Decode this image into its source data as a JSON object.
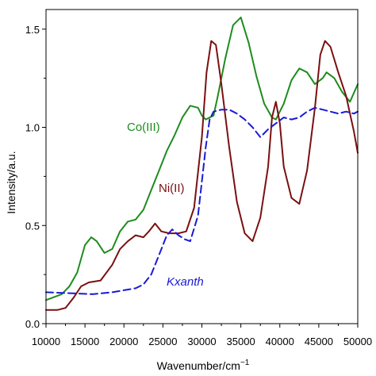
{
  "chart_data": {
    "type": "line",
    "xlabel": "Wavenumber/cm",
    "xlabel_sup": "−1",
    "ylabel": "Intensity/a.u.",
    "xlim": [
      10000,
      50000
    ],
    "ylim": [
      0,
      1.6
    ],
    "x_ticks": [
      10000,
      15000,
      20000,
      25000,
      30000,
      35000,
      40000,
      45000,
      50000
    ],
    "y_ticks": [
      0.0,
      0.5,
      1.0,
      1.5
    ],
    "x_tick_labels": [
      "10000",
      "15000",
      "20000",
      "25000",
      "30000",
      "35000",
      "40000",
      "45000",
      "50000"
    ],
    "y_tick_labels": [
      "0.0",
      "0.5",
      "1.0",
      "1.5"
    ],
    "grid": false,
    "series": [
      {
        "name": "Co(III)",
        "color": "#1e8c1e",
        "style": "solid",
        "label_italic": false,
        "x": [
          10000,
          12000,
          13000,
          14000,
          15000,
          15800,
          16500,
          17500,
          18500,
          19500,
          20500,
          21500,
          22500,
          23500,
          24500,
          25500,
          26500,
          27500,
          28500,
          29500,
          30000,
          30500,
          31000,
          31500,
          32000,
          33000,
          34000,
          35000,
          36000,
          37000,
          38000,
          39000,
          39500,
          40500,
          41500,
          42500,
          43500,
          44500,
          45500,
          46000,
          47000,
          48000,
          49000,
          50000
        ],
        "y": [
          0.12,
          0.15,
          0.19,
          0.26,
          0.4,
          0.44,
          0.42,
          0.36,
          0.38,
          0.47,
          0.52,
          0.53,
          0.58,
          0.68,
          0.78,
          0.88,
          0.96,
          1.05,
          1.11,
          1.1,
          1.06,
          1.04,
          1.05,
          1.06,
          1.15,
          1.35,
          1.52,
          1.56,
          1.43,
          1.26,
          1.12,
          1.05,
          1.04,
          1.12,
          1.24,
          1.3,
          1.28,
          1.22,
          1.25,
          1.28,
          1.25,
          1.18,
          1.13,
          1.22
        ]
      },
      {
        "name": "Ni(II)",
        "color": "#7a1010",
        "style": "solid",
        "label_italic": false,
        "x": [
          10000,
          11500,
          12500,
          13500,
          14500,
          15500,
          17000,
          18500,
          19500,
          20500,
          21500,
          22500,
          23200,
          24000,
          24800,
          25800,
          27000,
          28000,
          29000,
          30000,
          30600,
          31200,
          31800,
          32500,
          33500,
          34500,
          35500,
          36500,
          37500,
          38500,
          39000,
          39500,
          40000,
          40500,
          41500,
          42500,
          43500,
          44500,
          45200,
          45800,
          46500,
          47500,
          48500,
          49500,
          50000
        ],
        "y": [
          0.07,
          0.07,
          0.08,
          0.13,
          0.19,
          0.21,
          0.22,
          0.3,
          0.38,
          0.42,
          0.45,
          0.44,
          0.47,
          0.51,
          0.47,
          0.46,
          0.46,
          0.47,
          0.59,
          0.95,
          1.28,
          1.44,
          1.42,
          1.22,
          0.9,
          0.62,
          0.46,
          0.42,
          0.54,
          0.8,
          1.05,
          1.13,
          1.02,
          0.8,
          0.64,
          0.61,
          0.78,
          1.1,
          1.37,
          1.44,
          1.41,
          1.28,
          1.16,
          0.98,
          0.87
        ]
      },
      {
        "name": "Kxanth",
        "color": "#1a1ad6",
        "style": "dashed",
        "label_italic": true,
        "x": [
          10000,
          13000,
          16000,
          18500,
          20000,
          21500,
          22500,
          23500,
          24500,
          25500,
          26200,
          27000,
          27800,
          28500,
          29500,
          30500,
          31000,
          31500,
          32500,
          33500,
          34500,
          35500,
          36500,
          37500,
          38500,
          39500,
          40500,
          41500,
          42500,
          43500,
          44500,
          45500,
          46500,
          47500,
          48500,
          49500,
          50000
        ],
        "y": [
          0.16,
          0.155,
          0.15,
          0.16,
          0.17,
          0.18,
          0.2,
          0.25,
          0.35,
          0.45,
          0.48,
          0.45,
          0.43,
          0.42,
          0.55,
          0.9,
          1.04,
          1.08,
          1.09,
          1.09,
          1.07,
          1.04,
          1.0,
          0.95,
          0.99,
          1.02,
          1.05,
          1.04,
          1.05,
          1.08,
          1.1,
          1.09,
          1.08,
          1.07,
          1.08,
          1.07,
          1.08
        ]
      }
    ]
  }
}
